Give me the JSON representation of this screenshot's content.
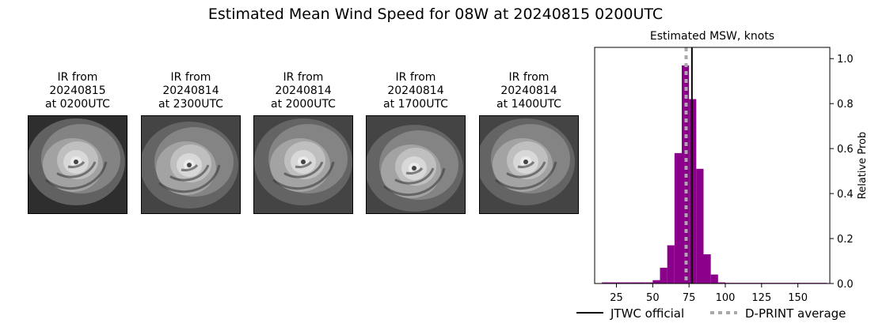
{
  "title": "Estimated Mean Wind Speed for 08W at 20240815 0200UTC",
  "ir_panels": [
    {
      "caption": "IR from\n20240815\nat 0200UTC"
    },
    {
      "caption": "IR from\n20240814\nat 2300UTC"
    },
    {
      "caption": "IR from\n20240814\nat 2000UTC"
    },
    {
      "caption": "IR from\n20240814\nat 1700UTC"
    },
    {
      "caption": "IR from\n20240814\nat 1400UTC"
    }
  ],
  "chart_data": {
    "type": "bar",
    "title": "Estimated MSW, knots",
    "xlabel": "",
    "ylabel": "Relative Prob",
    "xlim": [
      10,
      172
    ],
    "ylim": [
      0,
      1.05
    ],
    "xticks": [
      25,
      50,
      75,
      100,
      125,
      150
    ],
    "yticks": [
      0.0,
      0.2,
      0.4,
      0.6,
      0.8,
      1.0
    ],
    "y_axis_side": "right",
    "bin_width": 5,
    "bar_color": "#8b008b",
    "bins": [
      {
        "x": 15,
        "value": 0.005
      },
      {
        "x": 20,
        "value": 0.005
      },
      {
        "x": 25,
        "value": 0.005
      },
      {
        "x": 30,
        "value": 0.005
      },
      {
        "x": 35,
        "value": 0.005
      },
      {
        "x": 40,
        "value": 0.005
      },
      {
        "x": 45,
        "value": 0.005
      },
      {
        "x": 50,
        "value": 0.015
      },
      {
        "x": 55,
        "value": 0.07
      },
      {
        "x": 60,
        "value": 0.17
      },
      {
        "x": 65,
        "value": 0.58
      },
      {
        "x": 70,
        "value": 0.97
      },
      {
        "x": 75,
        "value": 0.82
      },
      {
        "x": 80,
        "value": 0.51
      },
      {
        "x": 85,
        "value": 0.13
      },
      {
        "x": 90,
        "value": 0.04
      },
      {
        "x": 95,
        "value": 0.005
      },
      {
        "x": 100,
        "value": 0.003
      },
      {
        "x": 105,
        "value": 0.003
      },
      {
        "x": 110,
        "value": 0.003
      },
      {
        "x": 115,
        "value": 0.003
      },
      {
        "x": 120,
        "value": 0.003
      },
      {
        "x": 125,
        "value": 0.003
      },
      {
        "x": 130,
        "value": 0.003
      },
      {
        "x": 135,
        "value": 0.003
      },
      {
        "x": 140,
        "value": 0.003
      },
      {
        "x": 145,
        "value": 0.003
      },
      {
        "x": 150,
        "value": 0.003
      },
      {
        "x": 155,
        "value": 0.003
      },
      {
        "x": 160,
        "value": 0.003
      },
      {
        "x": 165,
        "value": 0.003
      }
    ],
    "vlines": [
      {
        "name": "JTWC official",
        "x": 77,
        "color": "#000000",
        "style": "solid"
      },
      {
        "name": "D-PRINT average",
        "x": 73,
        "color": "#aaaaaa",
        "style": "dotted"
      }
    ],
    "legend": "bottom-center"
  }
}
